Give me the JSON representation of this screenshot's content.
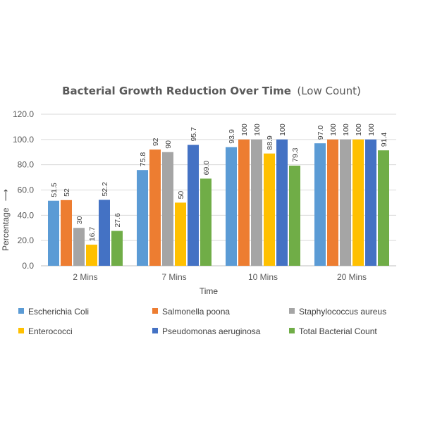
{
  "chart_data": {
    "type": "bar",
    "title": "Bacterial Growth Reduction Over Time",
    "title_suffix": "(Low Count)",
    "xlabel": "Time",
    "ylabel": "Percentage",
    "ylabel_arrow": "⟶",
    "ylim": [
      0,
      120
    ],
    "yticks": [
      0,
      20,
      40,
      60,
      80,
      100,
      120
    ],
    "ytick_labels": [
      "0.0",
      "20.0",
      "40.0",
      "60.0",
      "80.0",
      "100.0",
      "120.0"
    ],
    "grid": true,
    "legend_position": "bottom",
    "categories": [
      "2 Mins",
      "7 Mins",
      "10 Mins",
      "20 Mins"
    ],
    "series": [
      {
        "name": "Escherichia Coli",
        "color": "#5B9BD5",
        "values": [
          51.5,
          75.8,
          93.9,
          97.0
        ],
        "labels": [
          "51.5",
          "75.8",
          "93.9",
          "97.0"
        ]
      },
      {
        "name": "Salmonella poona",
        "color": "#ED7D31",
        "values": [
          52,
          92,
          100,
          100
        ],
        "labels": [
          "52",
          "92",
          "100",
          "100"
        ]
      },
      {
        "name": "Staphylococcus aureus",
        "color": "#A5A5A5",
        "values": [
          30,
          90,
          100,
          100
        ],
        "labels": [
          "30",
          "90",
          "100",
          "100"
        ]
      },
      {
        "name": "Enterococci",
        "color": "#FFC000",
        "values": [
          16.7,
          50,
          88.9,
          100
        ],
        "labels": [
          "16.7",
          "50",
          "88.9",
          "100"
        ]
      },
      {
        "name": "Pseudomonas aeruginosa",
        "color": "#4472C4",
        "values": [
          52.2,
          95.7,
          100,
          100
        ],
        "labels": [
          "52.2",
          "95.7",
          "100",
          "100"
        ]
      },
      {
        "name": "Total Bacterial Count",
        "color": "#70AD47",
        "values": [
          27.6,
          69.0,
          79.3,
          91.4
        ],
        "labels": [
          "27.6",
          "69.0",
          "79.3",
          "91.4"
        ]
      }
    ]
  }
}
